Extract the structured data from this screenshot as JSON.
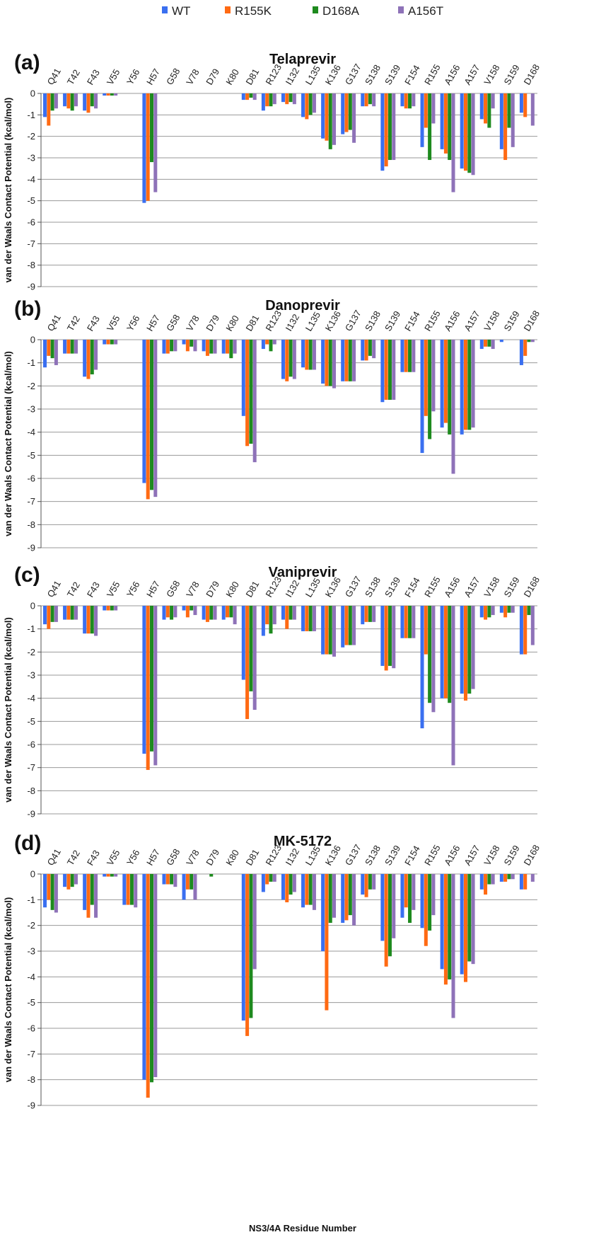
{
  "legend": [
    {
      "name": "WT",
      "color": "#3a6ff0"
    },
    {
      "name": "R155K",
      "color": "#ff6a13"
    },
    {
      "name": "D168A",
      "color": "#1e8a1e"
    },
    {
      "name": "A156T",
      "color": "#8e72b8"
    }
  ],
  "y_axis_label": "van der Waals Contact Potential (kcal/mol)",
  "x_axis_label": "NS3/4A Residue Number",
  "chart_data": [
    {
      "type": "bar",
      "panel_label": "(a)",
      "title": "Telaprevir",
      "ylim": [
        -9,
        0
      ],
      "yticks": [
        0,
        -1,
        -2,
        -3,
        -4,
        -5,
        -6,
        -7,
        -8,
        -9
      ],
      "grid": true,
      "categories": [
        "Q41",
        "T42",
        "F43",
        "V55",
        "Y56",
        "H57",
        "G58",
        "V78",
        "D79",
        "K80",
        "D81",
        "R123",
        "I132",
        "L135",
        "K136",
        "G137",
        "S138",
        "S139",
        "F154",
        "R155",
        "A156",
        "A157",
        "V158",
        "S159",
        "D168"
      ],
      "series": [
        {
          "name": "WT",
          "values": [
            -1.1,
            -0.6,
            -0.8,
            -0.1,
            0,
            -5.1,
            0,
            0,
            0,
            0,
            -0.3,
            -0.8,
            -0.4,
            -1.1,
            -2.1,
            -1.9,
            -0.6,
            -3.6,
            -0.6,
            -2.5,
            -2.6,
            -3.5,
            -1.2,
            -2.6,
            -0.9
          ]
        },
        {
          "name": "R155K",
          "values": [
            -1.5,
            -0.7,
            -0.9,
            -0.1,
            0,
            -5.0,
            0,
            0,
            0,
            0,
            -0.3,
            -0.6,
            -0.5,
            -1.2,
            -2.2,
            -1.8,
            -0.6,
            -3.4,
            -0.7,
            -1.6,
            -2.8,
            -3.6,
            -1.4,
            -3.1,
            -1.1
          ]
        },
        {
          "name": "D168A",
          "values": [
            -0.8,
            -0.8,
            -0.6,
            -0.1,
            0,
            -3.2,
            0,
            0,
            0,
            0,
            -0.2,
            -0.6,
            -0.4,
            -1.0,
            -2.6,
            -1.7,
            -0.5,
            -3.1,
            -0.7,
            -3.1,
            -3.1,
            -3.7,
            -1.6,
            -1.6,
            0
          ]
        },
        {
          "name": "A156T",
          "values": [
            -0.7,
            -0.6,
            -0.7,
            -0.1,
            0,
            -4.6,
            0,
            0,
            0,
            0,
            -0.3,
            -0.5,
            -0.5,
            -0.9,
            -2.4,
            -2.3,
            -0.6,
            -3.1,
            -0.6,
            -1.4,
            -4.6,
            -3.8,
            -0.7,
            -2.5,
            -1.5
          ]
        }
      ]
    },
    {
      "type": "bar",
      "panel_label": "(b)",
      "title": "Danoprevir",
      "ylim": [
        -9,
        0
      ],
      "yticks": [
        0,
        -1,
        -2,
        -3,
        -4,
        -5,
        -6,
        -7,
        -8,
        -9
      ],
      "grid": true,
      "categories": [
        "Q41",
        "T42",
        "F43",
        "V55",
        "Y56",
        "H57",
        "G58",
        "V78",
        "D79",
        "K80",
        "D81",
        "R123",
        "I132",
        "L135",
        "K136",
        "G137",
        "S138",
        "S139",
        "F154",
        "R155",
        "A156",
        "A157",
        "V158",
        "S159",
        "D168"
      ],
      "series": [
        {
          "name": "WT",
          "values": [
            -1.2,
            -0.6,
            -1.6,
            -0.2,
            0,
            -6.2,
            -0.6,
            -0.2,
            -0.5,
            -0.6,
            -3.3,
            -0.4,
            -1.7,
            -1.2,
            -1.9,
            -1.8,
            -0.9,
            -2.7,
            -1.4,
            -4.9,
            -3.8,
            -4.1,
            -0.4,
            -0.1,
            -1.1
          ]
        },
        {
          "name": "R155K",
          "values": [
            -0.7,
            -0.6,
            -1.7,
            -0.2,
            0,
            -6.9,
            -0.6,
            -0.5,
            -0.7,
            -0.6,
            -4.6,
            -0.2,
            -1.8,
            -1.3,
            -2.0,
            -1.8,
            -0.9,
            -2.6,
            -1.4,
            -3.3,
            -3.6,
            -3.9,
            -0.3,
            0,
            -0.7
          ]
        },
        {
          "name": "D168A",
          "values": [
            -0.8,
            -0.6,
            -1.5,
            -0.2,
            0,
            -6.5,
            -0.5,
            -0.3,
            -0.6,
            -0.8,
            -4.5,
            -0.5,
            -1.6,
            -1.3,
            -2.0,
            -1.8,
            -0.7,
            -2.6,
            -1.4,
            -4.3,
            -4.1,
            -3.9,
            -0.3,
            0,
            -0.1
          ]
        },
        {
          "name": "A156T",
          "values": [
            -1.1,
            -0.6,
            -1.3,
            -0.2,
            0,
            -6.8,
            -0.5,
            -0.5,
            -0.6,
            -0.6,
            -5.3,
            -0.2,
            -1.7,
            -1.3,
            -2.1,
            -1.8,
            -0.8,
            -2.6,
            -1.4,
            -3.1,
            -5.8,
            -3.8,
            -0.4,
            0,
            -0.1
          ]
        }
      ]
    },
    {
      "type": "bar",
      "panel_label": "(c)",
      "title": "Vaniprevir",
      "ylim": [
        -9,
        0
      ],
      "yticks": [
        0,
        -1,
        -2,
        -3,
        -4,
        -5,
        -6,
        -7,
        -8,
        -9
      ],
      "grid": true,
      "categories": [
        "Q41",
        "T42",
        "F43",
        "V55",
        "Y56",
        "H57",
        "G58",
        "V78",
        "D79",
        "K80",
        "D81",
        "R123",
        "I132",
        "L135",
        "K136",
        "G137",
        "S138",
        "S139",
        "F154",
        "R155",
        "A156",
        "A157",
        "V158",
        "S159",
        "D168"
      ],
      "series": [
        {
          "name": "WT",
          "values": [
            -0.8,
            -0.6,
            -1.2,
            -0.2,
            0,
            -6.4,
            -0.6,
            -0.2,
            -0.6,
            -0.6,
            -3.2,
            -1.3,
            -0.6,
            -1.1,
            -2.1,
            -1.8,
            -0.8,
            -2.6,
            -1.4,
            -5.3,
            -4.0,
            -3.8,
            -0.5,
            -0.3,
            -2.1
          ]
        },
        {
          "name": "R155K",
          "values": [
            -1.0,
            -0.6,
            -1.2,
            -0.2,
            0,
            -7.1,
            -0.5,
            -0.5,
            -0.7,
            -0.5,
            -4.9,
            -0.8,
            -1.0,
            -1.1,
            -2.1,
            -1.7,
            -0.7,
            -2.8,
            -1.4,
            -2.1,
            -4.0,
            -4.1,
            -0.6,
            -0.5,
            -2.1
          ]
        },
        {
          "name": "D168A",
          "values": [
            -0.7,
            -0.6,
            -1.2,
            -0.2,
            0,
            -6.3,
            -0.6,
            -0.2,
            -0.6,
            -0.5,
            -3.7,
            -1.2,
            -0.6,
            -1.1,
            -2.1,
            -1.7,
            -0.7,
            -2.6,
            -1.4,
            -4.2,
            -4.2,
            -3.8,
            -0.5,
            -0.3,
            -0.4
          ]
        },
        {
          "name": "A156T",
          "values": [
            -0.7,
            -0.6,
            -1.3,
            -0.2,
            0,
            -6.9,
            -0.5,
            -0.4,
            -0.6,
            -0.8,
            -4.5,
            -0.8,
            -0.6,
            -1.1,
            -2.2,
            -1.7,
            -0.7,
            -2.7,
            -1.4,
            -4.6,
            -6.9,
            -3.6,
            -0.4,
            -0.3,
            -1.7
          ]
        }
      ]
    },
    {
      "type": "bar",
      "panel_label": "(d)",
      "title": "MK-5172",
      "ylim": [
        -9,
        0
      ],
      "yticks": [
        0,
        -1,
        -2,
        -3,
        -4,
        -5,
        -6,
        -7,
        -8,
        -9
      ],
      "grid": true,
      "categories": [
        "Q41",
        "T42",
        "F43",
        "V55",
        "Y56",
        "H57",
        "G58",
        "V78",
        "D79",
        "K80",
        "D81",
        "R123",
        "I132",
        "L135",
        "K136",
        "G137",
        "S138",
        "S139",
        "F154",
        "R155",
        "A156",
        "A157",
        "V158",
        "S159",
        "D168"
      ],
      "series": [
        {
          "name": "WT",
          "values": [
            -1.3,
            -0.5,
            -1.4,
            -0.1,
            -1.2,
            -8.0,
            -0.4,
            -1.0,
            0,
            0,
            -5.7,
            -0.7,
            -1.0,
            -1.3,
            -3.0,
            -1.9,
            -0.8,
            -2.6,
            -1.7,
            -2.1,
            -3.7,
            -3.9,
            -0.6,
            -0.3,
            -0.6
          ]
        },
        {
          "name": "R155K",
          "values": [
            -1.0,
            -0.6,
            -1.7,
            -0.1,
            -1.2,
            -8.7,
            -0.4,
            -0.6,
            0,
            0,
            -6.3,
            -0.4,
            -1.1,
            -1.2,
            -5.3,
            -1.8,
            -0.9,
            -3.6,
            -1.3,
            -2.8,
            -4.3,
            -4.2,
            -0.8,
            -0.3,
            -0.6
          ]
        },
        {
          "name": "D168A",
          "values": [
            -1.4,
            -0.5,
            -1.2,
            -0.1,
            -1.2,
            -8.1,
            -0.4,
            -0.6,
            -0.1,
            0,
            -5.6,
            -0.3,
            -0.8,
            -1.2,
            -1.9,
            -1.6,
            -0.6,
            -3.2,
            -1.9,
            -2.2,
            -4.1,
            -3.4,
            -0.4,
            -0.2,
            0
          ]
        },
        {
          "name": "A156T",
          "values": [
            -1.5,
            -0.4,
            -1.7,
            -0.1,
            -1.3,
            -7.9,
            -0.5,
            -1.0,
            0,
            0,
            -3.7,
            -0.3,
            -0.7,
            -1.4,
            -1.7,
            -2.0,
            -0.6,
            -2.5,
            -1.4,
            -1.6,
            -5.6,
            -3.5,
            -0.4,
            -0.2,
            -0.3
          ]
        }
      ]
    }
  ]
}
